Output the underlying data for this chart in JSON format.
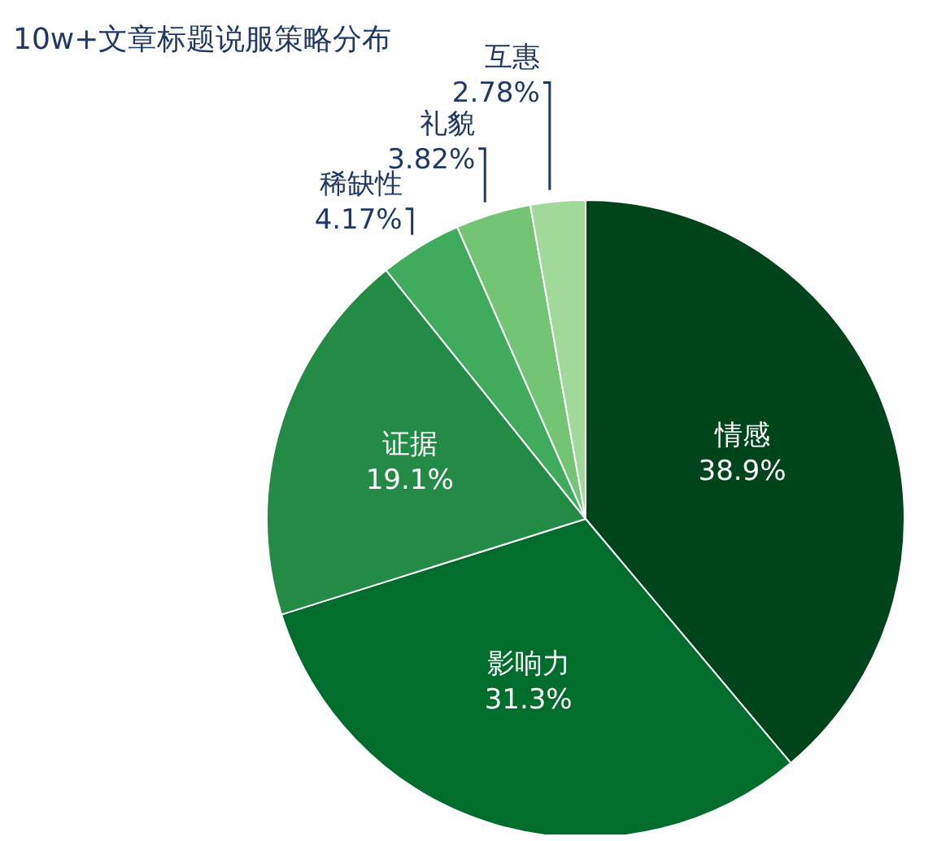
{
  "chart_data": {
    "type": "pie",
    "title": "10w+文章标题说服策略分布",
    "categories": [
      "情感",
      "影响力",
      "证据",
      "稀缺性",
      "礼貌",
      "互惠"
    ],
    "values": [
      38.9,
      31.3,
      19.1,
      4.17,
      3.82,
      2.78
    ],
    "value_labels": [
      "38.9%",
      "31.3%",
      "19.1%",
      "4.17%",
      "3.82%",
      "2.78%"
    ],
    "colors": [
      "#00441b",
      "#006d2c",
      "#238b45",
      "#41ab5d",
      "#74c476",
      "#a1d99b"
    ],
    "legend": false
  }
}
